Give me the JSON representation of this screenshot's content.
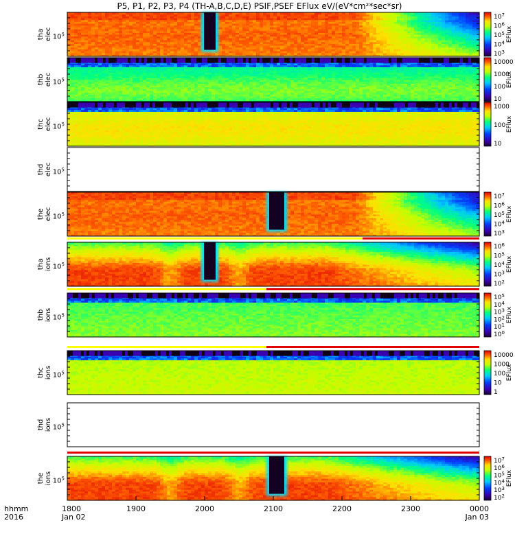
{
  "chart_data": {
    "type": "heatmap",
    "title": "P5, P1, P2, P3, P4 (TH-A,B,C,D,E) PSIF,PSEF EFlux eV/(eV*cm²*sec*sr)",
    "time_axis": {
      "ticks": [
        "1800",
        "1900",
        "2000",
        "2100",
        "2200",
        "2300",
        "0000"
      ],
      "date_ticks": [
        "Jan 02",
        "",
        "",
        "",
        "",
        "",
        "Jan 03"
      ],
      "range_hours": [
        18,
        24
      ],
      "label": "hhmm",
      "year": "2016"
    },
    "colorbar_title": "EFlux",
    "panels": [
      {
        "probe": "tha",
        "species": "elec",
        "ylabel": [
          "tha",
          "elec"
        ],
        "ytick": "10",
        "ytick_exp": "5",
        "style": "magnetosheath_e",
        "gap": [
          19.95,
          20.2
        ],
        "colorbar": {
          "base": "10",
          "exps": [
            "7",
            "6",
            "5",
            "4",
            "3"
          ],
          "plain": [],
          "label": "EFlux"
        }
      },
      {
        "probe": "thb",
        "species": "elec",
        "ylabel": [
          "thb",
          "elec"
        ],
        "ytick": "10",
        "ytick_exp": "5",
        "style": "solarwind_e",
        "colorbar": {
          "base": "",
          "exps": [],
          "plain": [
            "10000",
            "1000",
            "100",
            "10"
          ],
          "label": "EFlux"
        }
      },
      {
        "probe": "thc",
        "species": "elec",
        "ylabel": [
          "thc",
          "elec"
        ],
        "ytick": "10",
        "ytick_exp": "5",
        "style": "solarwind_e2",
        "colorbar": {
          "base": "",
          "exps": [],
          "plain": [
            "1000",
            "100",
            "10"
          ],
          "label": "EFlux"
        }
      },
      {
        "probe": "thd",
        "species": "elec",
        "ylabel": [
          "thd",
          "elec"
        ],
        "ytick": "10",
        "ytick_exp": "5",
        "style": "empty",
        "colorbar": null
      },
      {
        "probe": "the",
        "species": "elec",
        "ylabel": [
          "the",
          "elec"
        ],
        "ytick": "10",
        "ytick_exp": "5",
        "style": "magnetosheath_e",
        "gap": [
          20.9,
          21.2
        ],
        "colorbar": {
          "base": "10",
          "exps": [
            "7",
            "6",
            "5",
            "4",
            "3"
          ],
          "plain": [],
          "label": "EFlux"
        }
      },
      {
        "probe": "tha",
        "species": "ions",
        "ylabel": [
          "tha",
          "ions"
        ],
        "ytick": "10",
        "ytick_exp": "5",
        "style": "magnetosheath_i",
        "gap": [
          19.95,
          20.2
        ],
        "status": [
          22.3,
          24
        ],
        "colorbar": {
          "base": "10",
          "exps": [
            "6",
            "5",
            "4",
            "3",
            "2"
          ],
          "plain": [],
          "label": "EFlux"
        }
      },
      {
        "probe": "thb",
        "species": "ions",
        "ylabel": [
          "thb",
          "ions"
        ],
        "ytick": "10",
        "ytick_exp": "5",
        "style": "solarwind_i",
        "status": [
          20.9,
          24
        ],
        "colorbar": {
          "base": "10",
          "exps": [
            "5",
            "4",
            "3",
            "2",
            "1",
            "0"
          ],
          "plain": [],
          "label": "EFlux"
        }
      },
      {
        "probe": "thc",
        "species": "ions",
        "ylabel": [
          "thc",
          "ions"
        ],
        "ytick": "10",
        "ytick_exp": "5",
        "style": "solarwind_i2",
        "status": [
          20.9,
          24
        ],
        "colorbar": {
          "base": "",
          "exps": [],
          "plain": [
            "10000",
            "1000",
            "100",
            "10",
            "1"
          ],
          "label": "EFlux"
        }
      },
      {
        "probe": "thd",
        "species": "ions",
        "ylabel": [
          "thd",
          "ions"
        ],
        "ytick": "10",
        "ytick_exp": "5",
        "style": "empty",
        "colorbar": null
      },
      {
        "probe": "the",
        "species": "ions",
        "ylabel": [
          "the",
          "ions"
        ],
        "ytick": "10",
        "ytick_exp": "5",
        "style": "magnetosheath_i",
        "gap": [
          20.9,
          21.2
        ],
        "status_top": [
          18,
          24
        ],
        "colorbar": {
          "base": "10",
          "exps": [
            "7",
            "6",
            "5",
            "4",
            "3",
            "2"
          ],
          "plain": [],
          "label": "EFlux"
        }
      }
    ]
  }
}
